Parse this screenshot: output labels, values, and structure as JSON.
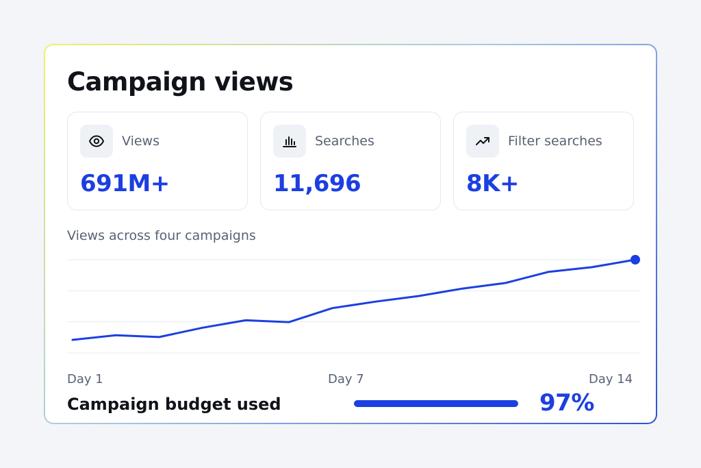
{
  "card": {
    "title": "Campaign views"
  },
  "metrics": [
    {
      "icon": "eye-icon",
      "label": "Views",
      "value": "691M+"
    },
    {
      "icon": "bar-chart-icon",
      "label": "Searches",
      "value": "11,696"
    },
    {
      "icon": "trend-up-icon",
      "label": "Filter searches",
      "value": "8K+"
    }
  ],
  "chart": {
    "subtitle": "Views across four campaigns",
    "x_labels": [
      "Day 1",
      "Day 7",
      "Day 14"
    ]
  },
  "chart_data": {
    "type": "line",
    "x": [
      1,
      2,
      3,
      4,
      5,
      6,
      7,
      8,
      9,
      10,
      11,
      12,
      13,
      14
    ],
    "series": [
      {
        "values": [
          14,
          19,
          17,
          27,
          35,
          33,
          48,
          55,
          61,
          69,
          75,
          87,
          92,
          100
        ],
        "color": "#1c3fe1"
      }
    ],
    "ylim": [
      0,
      100
    ],
    "grid": true,
    "highlight_last_point": true
  },
  "budget": {
    "label": "Campaign budget used",
    "value": "97%",
    "fraction": 0.97
  },
  "colors": {
    "accent": "#1c3fe1",
    "text": "#11131a",
    "muted": "#586174"
  }
}
